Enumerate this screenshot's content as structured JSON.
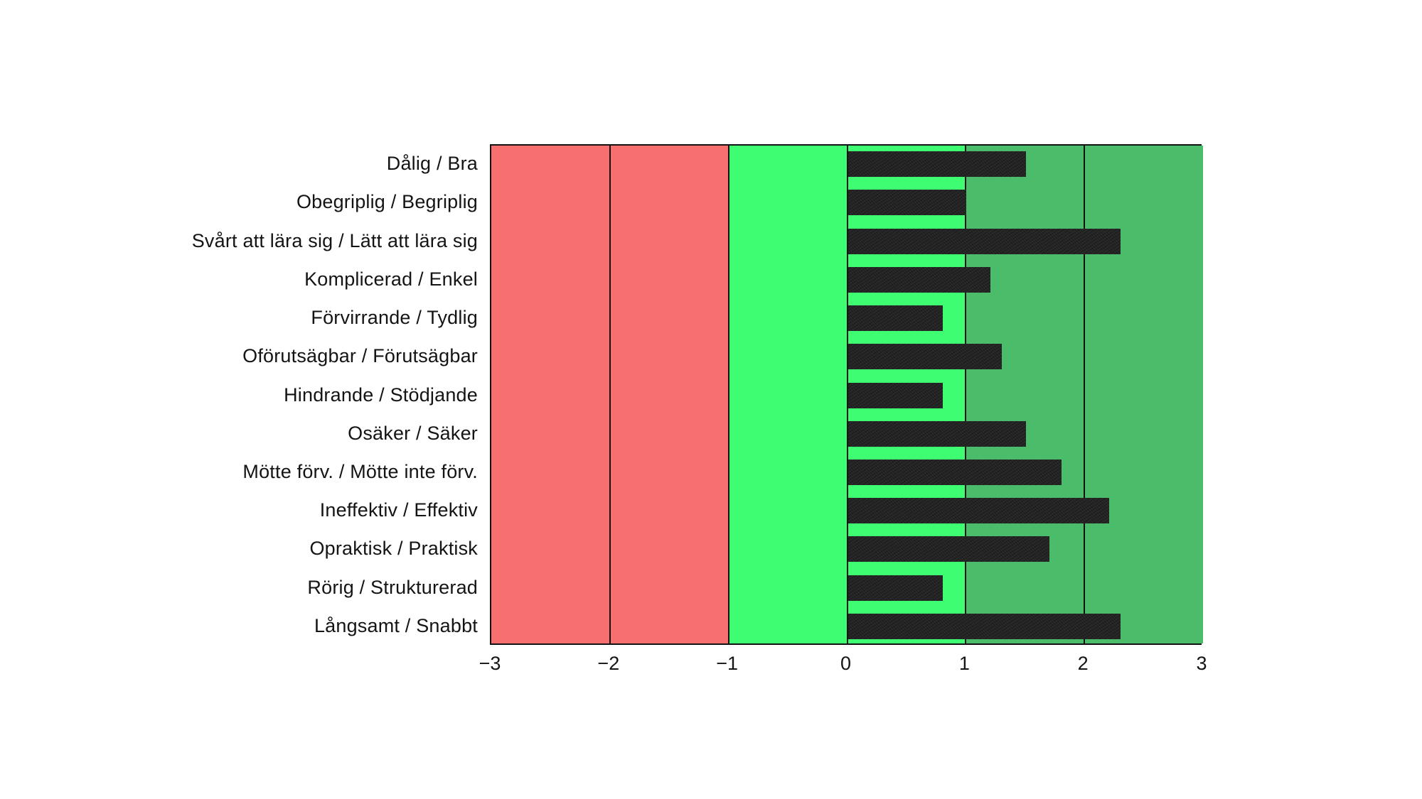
{
  "chart_data": {
    "type": "bar",
    "orientation": "horizontal",
    "categories": [
      "Dålig / Bra",
      "Obegriplig / Begriplig",
      "Svårt att lära sig / Lätt att lära sig",
      "Komplicerad / Enkel",
      "Förvirrande / Tydlig",
      "Oförutsägbar / Förutsägbar",
      "Hindrande / Stödjande",
      "Osäker / Säker",
      "Mötte förv. / Mötte inte förv.",
      "Ineffektiv / Effektiv",
      "Opraktisk / Praktisk",
      "Rörig / Strukturerad",
      "Långsamt / Snabbt"
    ],
    "values": [
      1.5,
      1.0,
      2.3,
      1.2,
      0.8,
      1.3,
      0.8,
      1.5,
      1.8,
      2.2,
      1.7,
      0.8,
      2.3
    ],
    "title": "",
    "xlabel": "",
    "ylabel": "",
    "xlim": [
      -3,
      3
    ],
    "x_tick_values": [
      -3,
      -2,
      -1,
      0,
      1,
      2,
      3
    ],
    "x_tick_labels": [
      "−3",
      "−2",
      "−1",
      "0",
      "1",
      "2",
      "3"
    ],
    "grid": true,
    "legend_position": "none",
    "background_zones": [
      {
        "name": "negative-zone",
        "from": -3,
        "to": -1,
        "color": "#F7706F"
      },
      {
        "name": "neutral-zone",
        "from": -1,
        "to": 1,
        "color": "#3EFD73"
      },
      {
        "name": "positive-zone",
        "from": 1,
        "to": 3,
        "color": "#4BBC69"
      }
    ],
    "bar_color": "#242424",
    "gridline_color": "#121212",
    "text_color": "#141414"
  }
}
